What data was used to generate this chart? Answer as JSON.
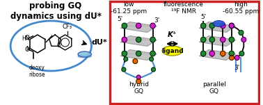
{
  "title_text": "probing GQ\ndynamics using dU*",
  "left_label": "deoxy\nribose",
  "du_label": "dU*",
  "low_label": "low\n-61.25 ppm",
  "center_label": "fluorescence\n¹⁹F NMR",
  "high_label": "high\n-60.55 ppm",
  "hybrid_label": "hybrid\nGQ",
  "parallel_label": "parallel\nGQ",
  "k_label": "K⁺",
  "ligand_label": "ligand",
  "cf3_label": "CF₃",
  "fig_width": 3.78,
  "fig_height": 1.51,
  "dpi": 100,
  "bg_color": "#ffffff",
  "red_box_color": "#cc2222",
  "blue_oval_color": "#4488cc",
  "yellow_color": "#ffff00",
  "black": "#000000",
  "gray_plane": "#b0b0b0",
  "green": "#228833",
  "magenta": "#cc22cc",
  "orange": "#dd6600",
  "blue_probe": "#2255cc",
  "blue_hairpin": "#4488cc"
}
